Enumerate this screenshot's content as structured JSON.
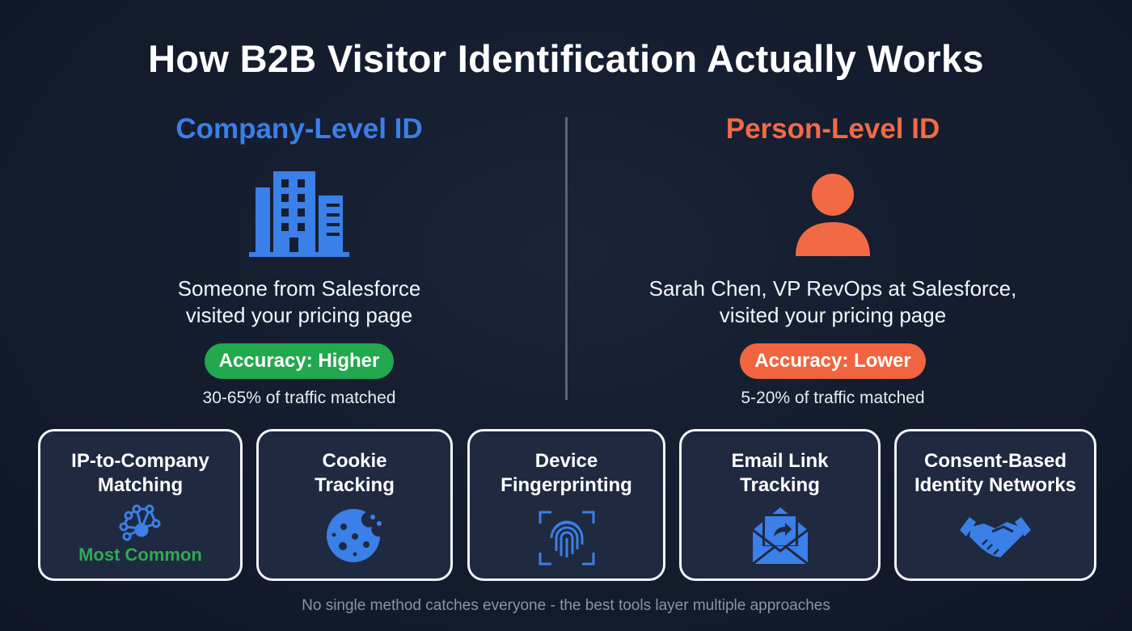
{
  "title": "How B2B Visitor Identification Actually Works",
  "colors": {
    "company": "#3b7fe8",
    "person": "#f26a45",
    "accuracy_high": "#22a84f",
    "accuracy_low": "#f0653f"
  },
  "company": {
    "heading": "Company-Level ID",
    "icon": "building-icon",
    "desc_line1": "Someone from Salesforce",
    "desc_line2": "visited your pricing page",
    "accuracy": "Accuracy: Higher",
    "match": "30-65% of traffic matched"
  },
  "person": {
    "heading": "Person-Level ID",
    "icon": "person-icon",
    "desc_line1": "Sarah Chen, VP RevOps at Salesforce,",
    "desc_line2": "visited your pricing page",
    "accuracy": "Accuracy: Lower",
    "match": "5-20% of traffic matched"
  },
  "methods": [
    {
      "line1": "IP-to-Company",
      "line2": "Matching",
      "icon": "network-icon",
      "tag": "Most Common"
    },
    {
      "line1": "Cookie",
      "line2": "Tracking",
      "icon": "cookie-icon"
    },
    {
      "line1": "Device",
      "line2": "Fingerprinting",
      "icon": "fingerprint-icon"
    },
    {
      "line1": "Email Link",
      "line2": "Tracking",
      "icon": "email-icon"
    },
    {
      "line1": "Consent-Based",
      "line2": "Identity Networks",
      "icon": "handshake-icon"
    }
  ],
  "footer": "No single method catches everyone - the best tools layer multiple approaches"
}
